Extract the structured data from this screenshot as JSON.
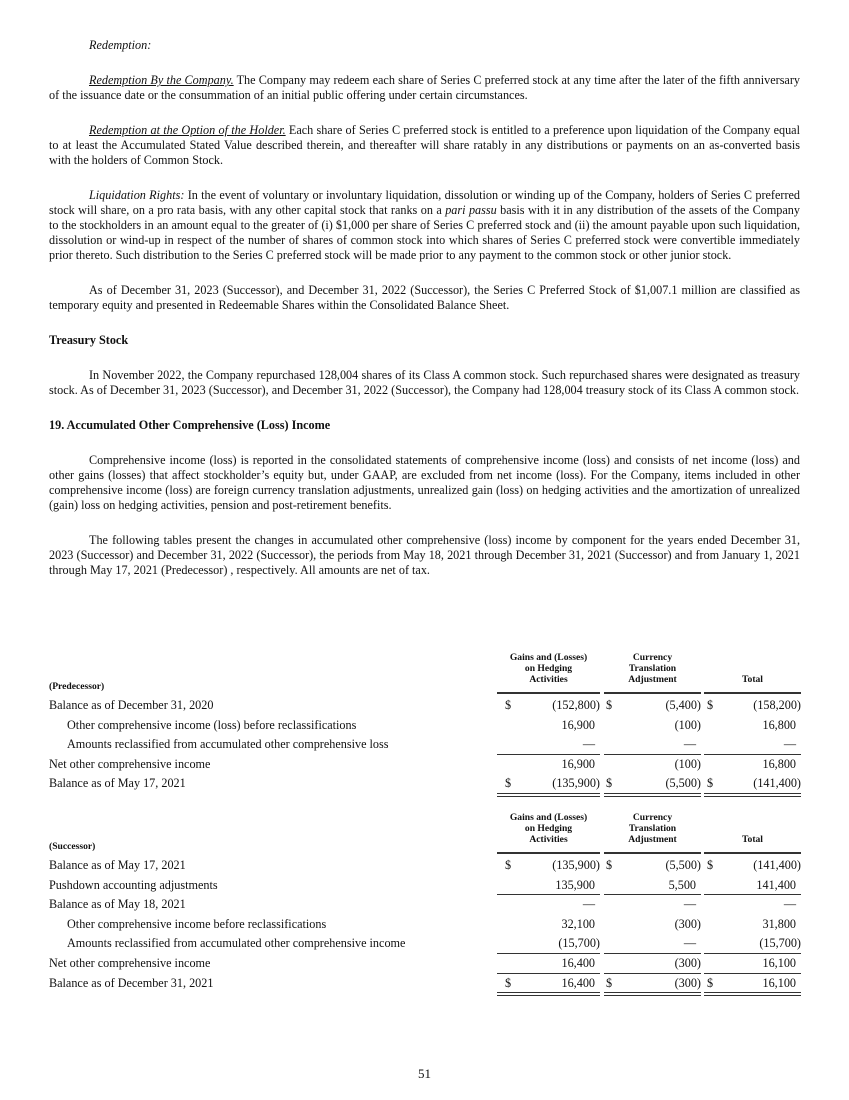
{
  "redemption_heading": "Redemption:",
  "p1": {
    "lead": "Redemption By the Company.",
    "text": " The Company may redeem each share of Series C preferred stock at any time after the later of the fifth anniversary of the issuance date or the consummation of an initial public offering under certain circumstances."
  },
  "p2": {
    "lead": "Redemption at the Option of the Holder.",
    "text": " Each share of Series C preferred stock is entitled to a preference upon liquidation of the Company equal to at least the Accumulated Stated Value described therein, and thereafter will share ratably in any distributions or payments on an as-converted basis with the holders of Common Stock."
  },
  "p3": {
    "lead": "Liquidation Rights:",
    "text1": " In the event of voluntary or involuntary liquidation, dissolution or winding up of the Company, holders of Series C preferred stock will share, on a pro rata basis, with any other capital stock that ranks on a ",
    "italic": "pari passu",
    "text2": " basis with it in any distribution of the assets of the Company to the stockholders in an amount equal to the greater of (i) $1,000 per share of Series C preferred stock and (ii) the amount payable upon such liquidation, dissolution or wind-up in respect of the number of shares of common stock into which shares of Series C preferred stock were convertible immediately prior thereto. Such distribution to the Series C preferred stock will be made prior to any payment to the common stock or other junior stock."
  },
  "p4": "As of December 31, 2023 (Successor), and December 31, 2022 (Successor), the Series C Preferred Stock of $1,007.1 million are classified as temporary equity and presented in Redeemable Shares within the Consolidated Balance Sheet.",
  "treasury_heading": "Treasury Stock",
  "p5": "In November 2022, the Company repurchased 128,004 shares of its Class A common stock. Such repurchased shares were designated as treasury stock. As of December 31, 2023 (Successor), and December 31, 2022 (Successor), the Company had 128,004 treasury stock of its Class A common stock.",
  "section_heading": "19. Accumulated Other Comprehensive (Loss) Income",
  "p6": "Comprehensive income (loss) is reported in the consolidated statements of comprehensive income (loss) and consists of net income (loss) and other gains (losses) that affect stockholder’s equity but, under GAAP, are excluded from net income (loss). For the Company, items included in other comprehensive income (loss) are foreign currency translation adjustments, unrealized gain (loss) on hedging activities and the amortization of unrealized (gain) loss on hedging activities, pension and post-retirement benefits.",
  "p7": "The following tables present the changes in accumulated other comprehensive (loss) income by component for the years ended December 31, 2023 (Successor) and December 31, 2022 (Successor), the periods from May 18, 2021 through December 31, 2021 (Successor) and from January 1, 2021 through May 17, 2021 (Predecessor) , respectively. All amounts are net of tax.",
  "tables": [
    {
      "label": "(Predecessor)",
      "columns": [
        [
          "Gains and (Losses)",
          "on Hedging",
          "Activities"
        ],
        [
          "Currency",
          "Translation",
          "Adjustment"
        ],
        [
          "Total"
        ]
      ],
      "rows": [
        {
          "label": "Balance as of December 31, 2020",
          "dollar": true,
          "values": [
            "(152,800)",
            "(5,400)",
            "(158,200)"
          ]
        },
        {
          "label": "Other comprehensive income (loss) before reclassifications",
          "indent": true,
          "values": [
            "16,900",
            "(100)",
            "16,800"
          ]
        },
        {
          "label": "Amounts reclassified from accumulated other comprehensive loss",
          "indent": true,
          "values": [
            "—",
            "—",
            "—"
          ]
        },
        {
          "label": "Net other comprehensive income",
          "values": [
            "16,900",
            "(100)",
            "16,800"
          ]
        },
        {
          "label": "Balance as of May 17, 2021",
          "dollar": true,
          "values": [
            "(135,900)",
            "(5,500)",
            "(141,400)"
          ]
        }
      ]
    },
    {
      "label": "(Successor)",
      "columns": [
        [
          "Gains and (Losses)",
          "on Hedging",
          "Activities"
        ],
        [
          "Currency",
          "Translation",
          "Adjustment"
        ],
        [
          "Total"
        ]
      ],
      "rows": [
        {
          "label": "Balance as of May 17, 2021",
          "dollar": true,
          "values": [
            "(135,900)",
            "(5,500)",
            "(141,400)"
          ]
        },
        {
          "label": "Pushdown accounting adjustments",
          "values": [
            "135,900",
            "5,500",
            "141,400"
          ]
        },
        {
          "label": "Balance as of May 18, 2021",
          "values": [
            "—",
            "—",
            "—"
          ]
        },
        {
          "label": "Other comprehensive income before reclassifications",
          "indent": true,
          "values": [
            "32,100",
            "(300)",
            "31,800"
          ]
        },
        {
          "label": "Amounts reclassified from accumulated other comprehensive income",
          "indent": true,
          "values": [
            "(15,700)",
            "—",
            "(15,700)"
          ]
        },
        {
          "label": "Net other comprehensive income",
          "values": [
            "16,400",
            "(300)",
            "16,100"
          ]
        },
        {
          "label": "Balance as of December 31, 2021",
          "dollar": true,
          "values": [
            "16,400",
            "(300)",
            "16,100"
          ]
        }
      ]
    }
  ],
  "currency_symbol": "$",
  "page_number": "51"
}
